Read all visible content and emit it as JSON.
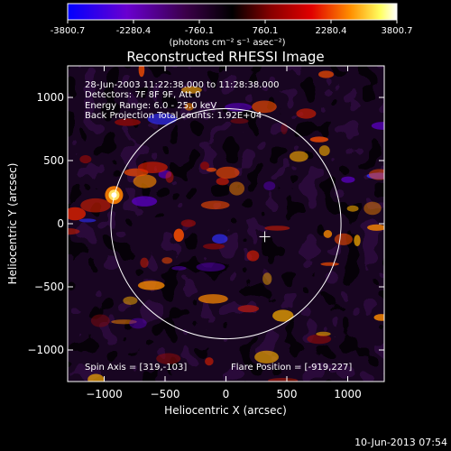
{
  "colorbar": {
    "ticks": [
      "-3800.7",
      "-2280.4",
      "-760.1",
      "760.1",
      "2280.4",
      "3800.7"
    ],
    "tick_values": [
      -3800.7,
      -2280.4,
      -760.1,
      760.1,
      2280.4,
      3800.7
    ],
    "range": [
      -3800.7,
      3800.7
    ],
    "units": "(photons cm⁻² s⁻¹ asec⁻²)",
    "colors": [
      "#0000ff",
      "#7a00cc",
      "#300030",
      "#000000",
      "#800000",
      "#e00000",
      "#ff8000",
      "#ffff40",
      "#ffffff"
    ]
  },
  "chart_data": {
    "type": "heatmap",
    "title": "Reconstructed RHESSI Image",
    "xlabel": "Heliocentric X (arcsec)",
    "ylabel": "Heliocentric Y (arcsec)",
    "xlim": [
      -1300,
      1300
    ],
    "ylim": [
      -1250,
      1250
    ],
    "xticks": [
      -1000,
      -500,
      0,
      500,
      1000
    ],
    "yticks": [
      -1000,
      -500,
      0,
      500,
      1000
    ],
    "annotations": [
      "28-Jun-2003 11:22:38.000 to 11:28:38.000",
      "Detectors: 7F 8F 9F, Att 0",
      "Energy Range: 6.0 - 25.0 keV",
      "Back Projection     Total counts: 1.92E+04"
    ],
    "spin_axis_label": "Spin Axis = [319,-103]",
    "flare_position_label": "Flare Position = [-919,227]",
    "solar_limb": {
      "center": [
        0,
        0
      ],
      "radius": 945
    },
    "spin_axis": [
      319,
      -103
    ],
    "flare_position": [
      -919,
      227
    ],
    "grid": false
  },
  "footer": {
    "date": "10-Jun-2013 07:54"
  }
}
